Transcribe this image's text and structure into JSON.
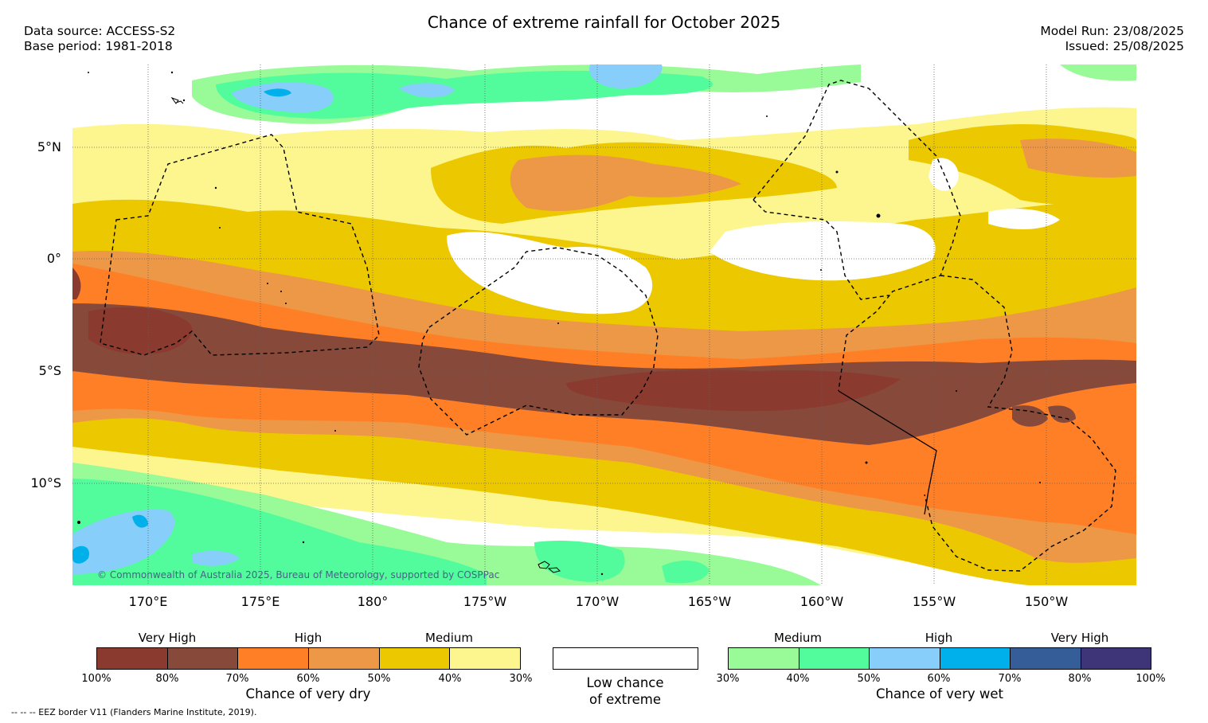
{
  "header": {
    "title": "Chance of extreme rainfall for October 2025",
    "data_source": "Data source: ACCESS-S2",
    "base_period": "Base period: 1981-2018",
    "model_run": "Model Run: 23/08/2025",
    "issued": "Issued: 25/08/2025"
  },
  "map": {
    "lat_labels": [
      "5°N",
      "0°",
      "5°S",
      "10°S"
    ],
    "lon_labels": [
      "170°E",
      "175°E",
      "180°",
      "175°W",
      "170°W",
      "165°W",
      "160°W",
      "155°W",
      "150°W"
    ],
    "copyright": "© Commonwealth of Australia 2025, Bureau of Meteorology, supported by COSPPac"
  },
  "legend": {
    "dry": {
      "levels": [
        "Very High",
        "High",
        "Medium"
      ],
      "colors": [
        "#8b3a30",
        "#874a3a",
        "#ff7f27",
        "#ec9846",
        "#ecc800",
        "#fdf68f"
      ],
      "ticks": [
        "100%",
        "80%",
        "70%",
        "60%",
        "50%",
        "40%",
        "30%"
      ],
      "caption": "Chance of very dry"
    },
    "low": {
      "color": "#ffffff",
      "caption_line1": "Low chance",
      "caption_line2": "of extreme"
    },
    "wet": {
      "levels": [
        "Medium",
        "High",
        "Very High"
      ],
      "colors": [
        "#98fb98",
        "#52fc9c",
        "#87cefa",
        "#00b0eb",
        "#355e98",
        "#3d3578"
      ],
      "ticks": [
        "30%",
        "40%",
        "50%",
        "60%",
        "70%",
        "80%",
        "100%"
      ],
      "caption": "Chance of very wet"
    }
  },
  "footer": {
    "eez_note": "--  --  -- EEZ border V11 (Flanders Marine Institute, 2019)."
  }
}
